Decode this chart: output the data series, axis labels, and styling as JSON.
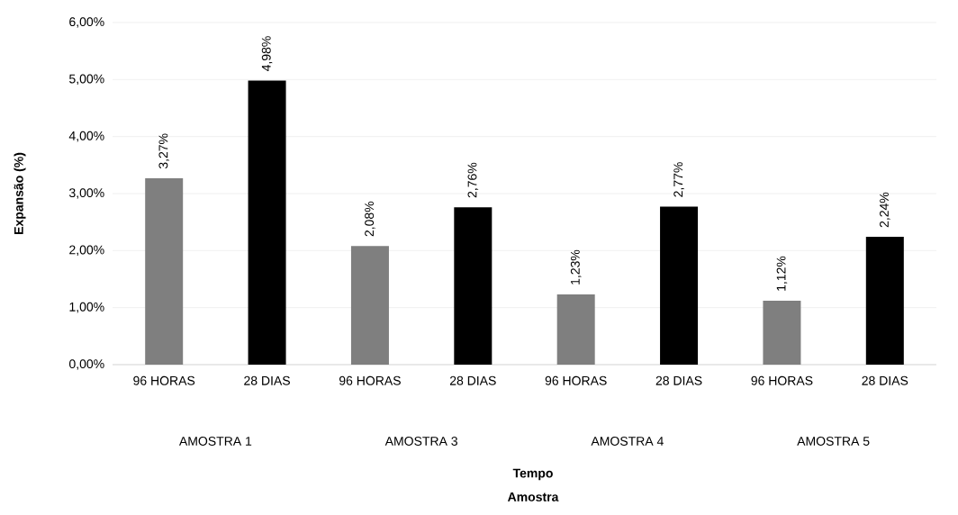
{
  "chart_data": {
    "type": "bar",
    "categories": [
      "96 HORAS",
      "28 DIAS",
      "96 HORAS",
      "28 DIAS",
      "96 HORAS",
      "28 DIAS",
      "96 HORAS",
      "28 DIAS"
    ],
    "values": [
      3.27,
      4.98,
      2.08,
      2.76,
      1.23,
      2.77,
      1.12,
      2.24
    ],
    "value_labels": [
      "3,27%",
      "4,98%",
      "2,08%",
      "2,76%",
      "1,23%",
      "2,77%",
      "1,12%",
      "2,24%"
    ],
    "colors": [
      "#7f7f7f",
      "#000000",
      "#7f7f7f",
      "#000000",
      "#7f7f7f",
      "#000000",
      "#7f7f7f",
      "#000000"
    ],
    "ylabel": "Expansão (%)",
    "annotations": [
      "AMOSTRA 1",
      "AMOSTRA 3",
      "AMOSTRA 4",
      "AMOSTRA 5",
      "Tempo",
      "Amostra"
    ],
    "ylim": [
      0,
      6
    ],
    "yticks": [
      {
        "value": 0,
        "label": "0,00%"
      },
      {
        "value": 1,
        "label": "1,00%"
      },
      {
        "value": 2,
        "label": "2,00%"
      },
      {
        "value": 3,
        "label": "3,00%"
      },
      {
        "value": 4,
        "label": "4,00%"
      },
      {
        "value": 5,
        "label": "5,00%"
      },
      {
        "value": 6,
        "label": "6,00%"
      }
    ],
    "grid": "y"
  }
}
